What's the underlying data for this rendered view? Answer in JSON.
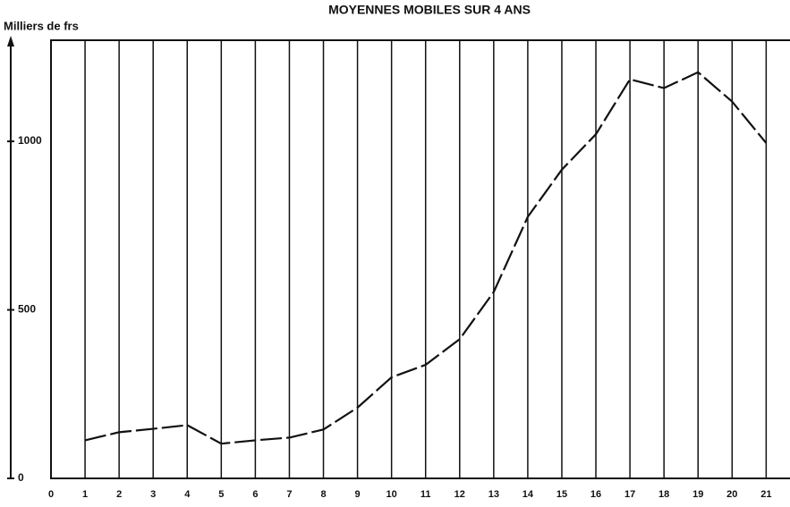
{
  "chart_data": {
    "type": "line",
    "title": "MOYENNES MOBILES SUR 4 ANS",
    "y_label": "Milliers de frs",
    "x": [
      1,
      2,
      3,
      4,
      5,
      6,
      7,
      8,
      9,
      10,
      11,
      12,
      13,
      14,
      15,
      16,
      17,
      18,
      19,
      20,
      21
    ],
    "series": [
      {
        "color": "#111111",
        "values": [
          113,
          137,
          147,
          158,
          103,
          113,
          121,
          145,
          210,
          300,
          337,
          413,
          553,
          776,
          916,
          1021,
          1184,
          1158,
          1205,
          1118,
          995
        ]
      }
    ],
    "xlim": [
      0,
      21.7
    ],
    "xticks": [
      0,
      1,
      2,
      3,
      4,
      5,
      6,
      7,
      8,
      9,
      10,
      11,
      12,
      13,
      14,
      15,
      16,
      17,
      18,
      19,
      20,
      21,
      22
    ],
    "ylim": [
      0,
      1300
    ],
    "yticks": [
      0,
      500,
      1000
    ],
    "grid": true,
    "dashed": true
  }
}
